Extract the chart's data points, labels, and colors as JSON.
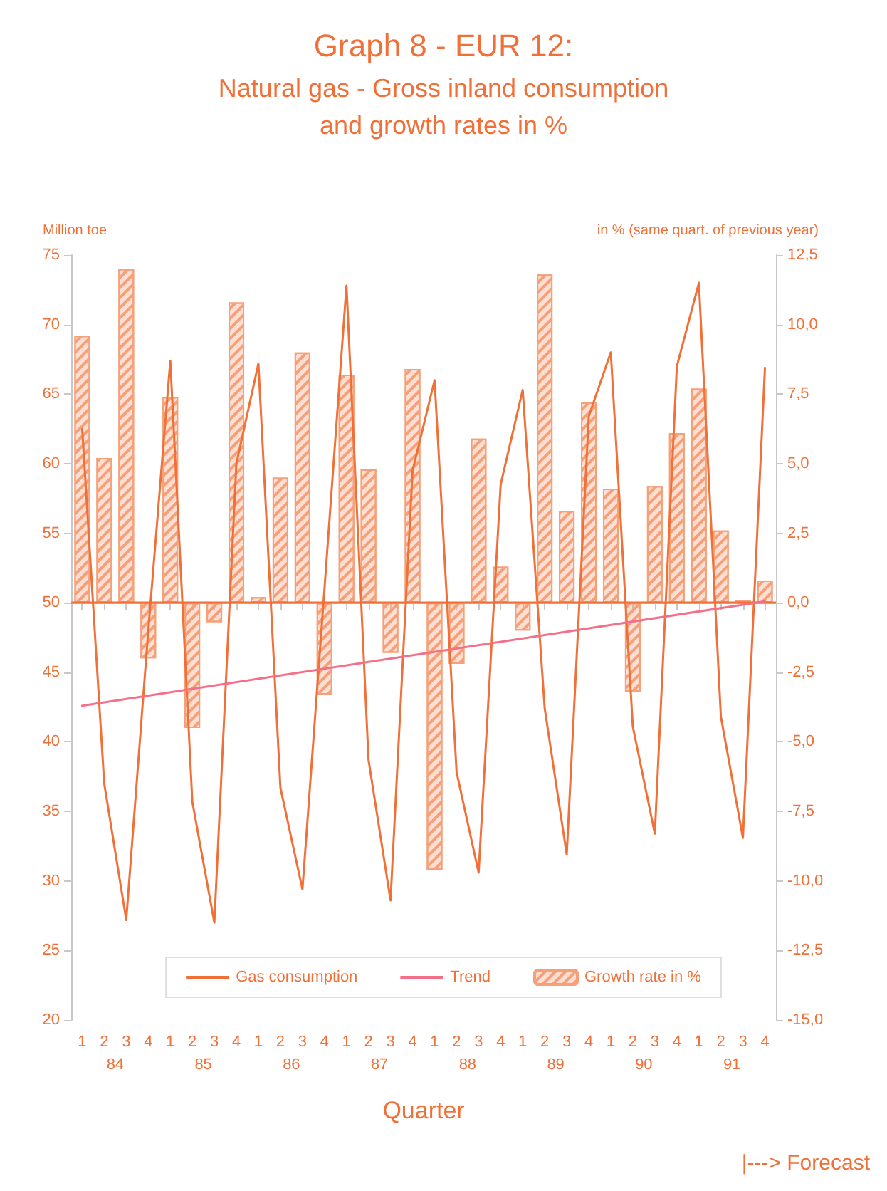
{
  "chart_data": {
    "type": "bar",
    "title": "Graph 8 - EUR 12:",
    "subtitle": "Natural gas - Gross inland consumption\nand growth rates in %",
    "xlabel": "Quarter",
    "ylabel": "Million toe",
    "y2label": "in % (same quart. of previous year)",
    "categories": [
      "1",
      "2",
      "3",
      "4",
      "1",
      "2",
      "3",
      "4",
      "1",
      "2",
      "3",
      "4",
      "1",
      "2",
      "3",
      "4",
      "1",
      "2",
      "3",
      "4",
      "1",
      "2",
      "3",
      "4",
      "1",
      "2",
      "3",
      "4",
      "1",
      "2",
      "3",
      "4"
    ],
    "series": [
      {
        "name": "Gas consumption",
        "type": "line",
        "color": "#f07038",
        "values": [
          62.5,
          37.0,
          27.2,
          48.0,
          67.4,
          35.7,
          27.0,
          60.0,
          67.2,
          36.7,
          29.4,
          51.0,
          72.8,
          38.7,
          28.6,
          59.5,
          66.0,
          37.8,
          30.6,
          58.5,
          65.3,
          42.4,
          31.9,
          63.4,
          68.0,
          41.1,
          33.4,
          67.0,
          73.0,
          41.8,
          33.1,
          66.9
        ]
      },
      {
        "name": "Trend",
        "type": "line",
        "color": "#f47088",
        "values": [
          42.6,
          null,
          null,
          null,
          null,
          null,
          null,
          null,
          null,
          null,
          null,
          null,
          null,
          null,
          null,
          null,
          null,
          null,
          null,
          null,
          null,
          null,
          null,
          null,
          null,
          null,
          null,
          null,
          null,
          null,
          null,
          50.1
        ]
      },
      {
        "name": "Growth rate in %",
        "axis": "y2",
        "color": "#f5a078",
        "values": [
          9.6,
          5.2,
          12.0,
          -2.0,
          7.4,
          -4.5,
          -0.7,
          10.8,
          0.2,
          4.5,
          9.0,
          -3.3,
          8.2,
          4.8,
          -1.8,
          8.4,
          -9.6,
          -2.2,
          5.9,
          1.3,
          -1.0,
          11.8,
          3.3,
          7.2,
          4.1,
          -3.2,
          4.2,
          6.1,
          7.7,
          2.6,
          0.1,
          0.8
        ]
      }
    ],
    "ylim": [
      20,
      75
    ],
    "yticks": [
      20,
      25,
      30,
      35,
      40,
      45,
      50,
      55,
      60,
      65,
      70,
      75
    ],
    "y2lim": [
      -15,
      12.5
    ],
    "y2ticks": [
      {
        "value": -15,
        "label": "-15,0"
      },
      {
        "value": -12.5,
        "label": "-12,5"
      },
      {
        "value": -10,
        "label": "-10,0"
      },
      {
        "value": -7.5,
        "label": "-7,5"
      },
      {
        "value": -5,
        "label": "-5,0"
      },
      {
        "value": -2.5,
        "label": "-2,5"
      },
      {
        "value": 0,
        "label": "0,0"
      },
      {
        "value": 2.5,
        "label": "2,5"
      },
      {
        "value": 5,
        "label": "5,0"
      },
      {
        "value": 7.5,
        "label": "7,5"
      },
      {
        "value": 10,
        "label": "10,0"
      },
      {
        "value": 12.5,
        "label": "12,5"
      }
    ],
    "ref_lines": [
      {
        "axis": "y2",
        "value": 0,
        "color": "#f07038"
      }
    ],
    "annotations": [
      "84",
      "85",
      "86",
      "87",
      "88",
      "89",
      "90",
      "91",
      "|---> Forecast"
    ],
    "grid": false,
    "legend": "bottom",
    "marker": "none",
    "line_style": "solid"
  }
}
